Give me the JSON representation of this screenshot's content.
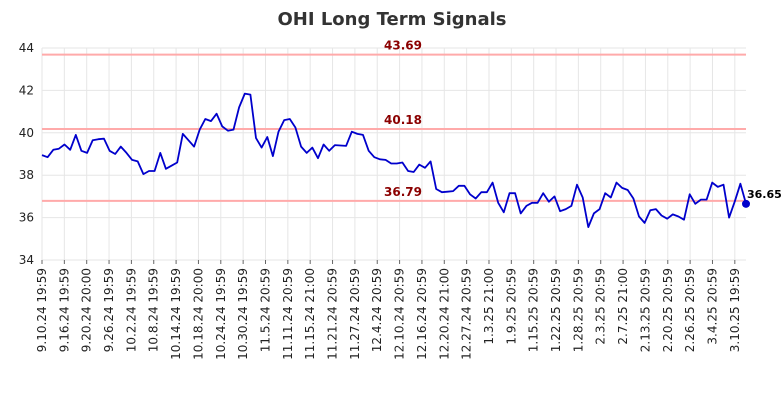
{
  "chart_data": {
    "type": "line",
    "title": "OHI Long Term Signals",
    "xlabel": "",
    "ylabel": "",
    "ylim": [
      34,
      44
    ],
    "yticks": [
      34,
      36,
      38,
      40,
      42,
      44
    ],
    "grid": true,
    "line_color": "#0000cc",
    "level_line_color": "#ffaaaa",
    "level_label_color": "#8b0000",
    "x_tick_labels": [
      "9.10.24 19:59",
      "9.16.24 19:59",
      "9.20.24 20:00",
      "9.26.24 19:59",
      "10.2.24 19:59",
      "10.8.24 19:59",
      "10.14.24 19:59",
      "10.18.24 20:00",
      "10.24.24 19:59",
      "10.30.24 19:59",
      "11.5.24 20:59",
      "11.11.24 20:59",
      "11.15.24 21:00",
      "11.21.24 20:59",
      "11.27.24 20:59",
      "12.4.24 20:59",
      "12.10.24 20:59",
      "12.16.24 20:59",
      "12.20.24 21:00",
      "12.27.24 20:59",
      "1.3.25 21:00",
      "1.9.25 20:59",
      "1.15.25 20:59",
      "1.22.25 20:59",
      "1.28.25 20:59",
      "2.3.25 20:59",
      "2.7.25 21:00",
      "2.13.25 20:59",
      "2.20.25 20:59",
      "2.26.25 20:59",
      "3.4.25 20:59",
      "3.10.25 19:59"
    ],
    "series": [
      {
        "values": [
          38.95,
          38.85,
          39.2,
          39.25,
          39.45,
          39.2,
          39.9,
          39.15,
          39.05,
          39.65,
          39.7,
          39.72,
          39.15,
          39.0,
          39.35,
          39.05,
          38.72,
          38.65,
          38.05,
          38.2,
          38.2,
          39.05,
          38.3,
          38.45,
          38.6,
          39.95,
          39.65,
          39.35,
          40.15,
          40.65,
          40.55,
          40.9,
          40.3,
          40.1,
          40.15,
          41.2,
          41.85,
          41.8,
          39.75,
          39.3,
          39.8,
          38.9,
          40.05,
          40.6,
          40.65,
          40.25,
          39.35,
          39.05,
          39.3,
          38.8,
          39.45,
          39.15,
          39.42,
          39.4,
          39.38,
          40.05,
          39.95,
          39.9,
          39.15,
          38.85,
          38.75,
          38.72,
          38.55,
          38.55,
          38.6,
          38.2,
          38.15,
          38.5,
          38.35,
          38.65,
          37.35,
          37.2,
          37.22,
          37.25,
          37.5,
          37.5,
          37.1,
          36.9,
          37.2,
          37.2,
          37.65,
          36.7,
          36.25,
          37.15,
          37.15,
          36.2,
          36.55,
          36.7,
          36.7,
          37.15,
          36.75,
          37.0,
          36.3,
          36.4,
          36.55,
          37.55,
          36.95,
          35.55,
          36.2,
          36.4,
          37.15,
          36.95,
          37.65,
          37.4,
          37.3,
          36.9,
          36.05,
          35.75,
          36.35,
          36.4,
          36.1,
          35.95,
          36.15,
          36.05,
          35.9,
          37.1,
          36.65,
          36.85,
          36.85,
          37.65,
          37.45,
          37.55,
          36.0,
          36.75,
          37.6,
          36.65
        ]
      }
    ],
    "levels": [
      {
        "value": 43.69,
        "label": "43.69"
      },
      {
        "value": 40.18,
        "label": "40.18"
      },
      {
        "value": 36.79,
        "label": "36.79"
      }
    ],
    "last_value": {
      "value": 36.65,
      "label": "36.65"
    }
  }
}
